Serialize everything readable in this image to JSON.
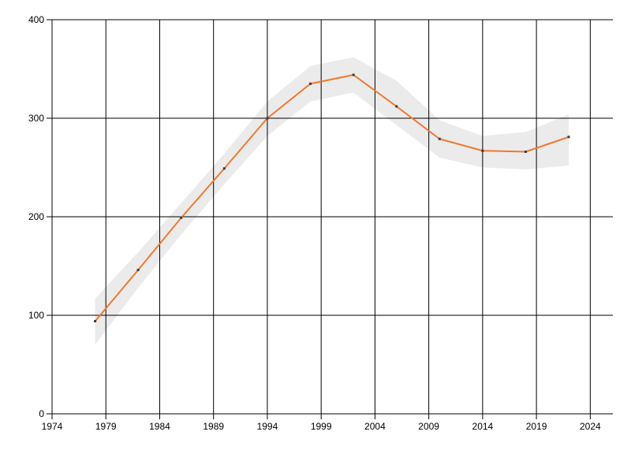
{
  "chart_data": {
    "type": "line",
    "title": "",
    "xlabel": "",
    "ylabel": "",
    "x": [
      1978,
      1982,
      1986,
      1990,
      1994,
      1998,
      2002,
      2006,
      2010,
      2014,
      2018,
      2022
    ],
    "series": [
      {
        "name": "main-series",
        "values": [
          94,
          146,
          199,
          249,
          300,
          335,
          344,
          312,
          279,
          267,
          266,
          281
        ],
        "color": "#f0792f",
        "marker_color": "#3d3d3d"
      }
    ],
    "band": {
      "name": "confidence-band",
      "upper": [
        117,
        164,
        214,
        264,
        317,
        353,
        362,
        338,
        298,
        282,
        286,
        304
      ],
      "lower": [
        70,
        128,
        182,
        233,
        282,
        317,
        326,
        293,
        260,
        250,
        248,
        252
      ],
      "color": "#ebebeb"
    },
    "x_axis": {
      "min": 1974,
      "max": 2026.1,
      "ticks": [
        1974,
        1979,
        1984,
        1989,
        1994,
        1999,
        2004,
        2009,
        2014,
        2019,
        2024
      ]
    },
    "y_axis": {
      "min": 0,
      "max": 400,
      "ticks": [
        0,
        100,
        200,
        300,
        400
      ]
    },
    "grid": true,
    "legend_position": "none",
    "axis_color": "#000000",
    "label_color": "#000000",
    "background": "#ffffff"
  }
}
